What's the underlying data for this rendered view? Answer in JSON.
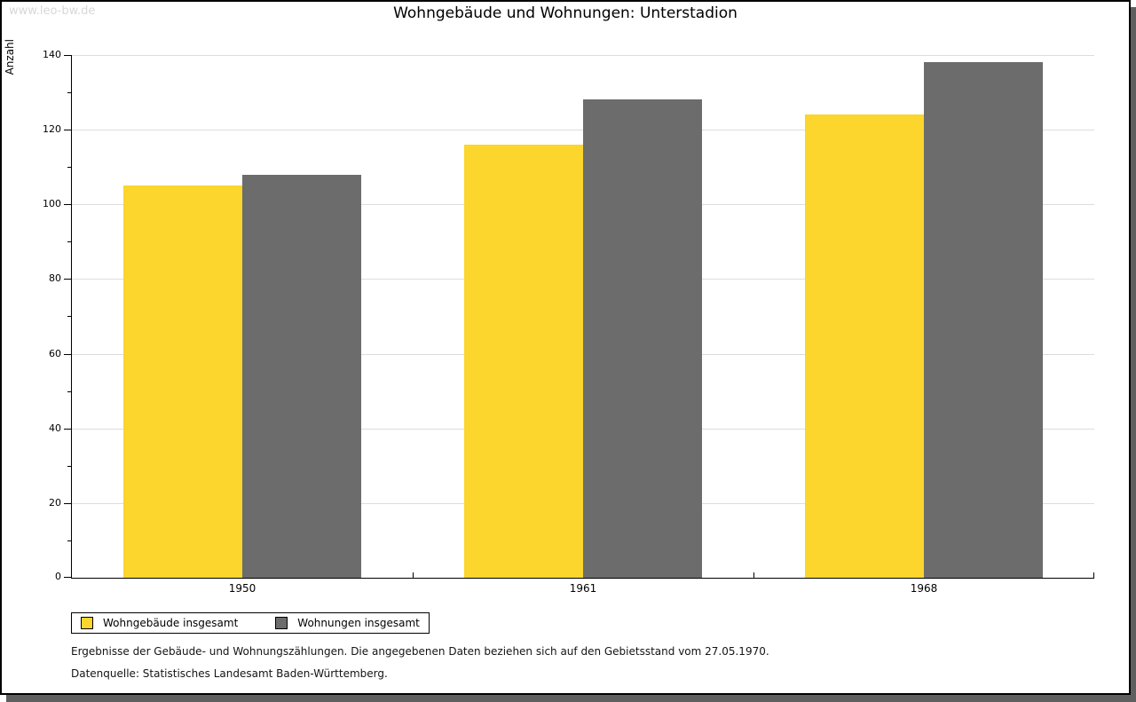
{
  "watermark": "www.leo-bw.de",
  "chart_data": {
    "type": "bar",
    "title": "Wohngebäude und Wohnungen: Unterstadion",
    "xlabel": "",
    "ylabel": "Anzahl",
    "categories": [
      "1950",
      "1961",
      "1968"
    ],
    "series": [
      {
        "name": "Wohngebäude insgesamt",
        "color": "#FCD52D",
        "values": [
          105,
          116,
          124
        ]
      },
      {
        "name": "Wohnungen insgesamt",
        "color": "#6C6C6C",
        "values": [
          108,
          128,
          138
        ]
      }
    ],
    "ylim": [
      0,
      140
    ],
    "ytick_major_step": 20,
    "ytick_minor_step": 10,
    "grid": "horizontal-major",
    "legend_position": "bottom-left"
  },
  "colors": {
    "grid": "#dddddd",
    "axis": "#000000",
    "shadow": "#5f5f5f",
    "watermark": "#d8d8d8",
    "background": "#ffffff"
  },
  "footnotes": [
    "Ergebnisse der Gebäude- und Wohnungszählungen. Die angegebenen Daten beziehen sich auf den Gebietsstand vom 27.05.1970.",
    "Datenquelle: Statistisches Landesamt Baden-Württemberg."
  ]
}
